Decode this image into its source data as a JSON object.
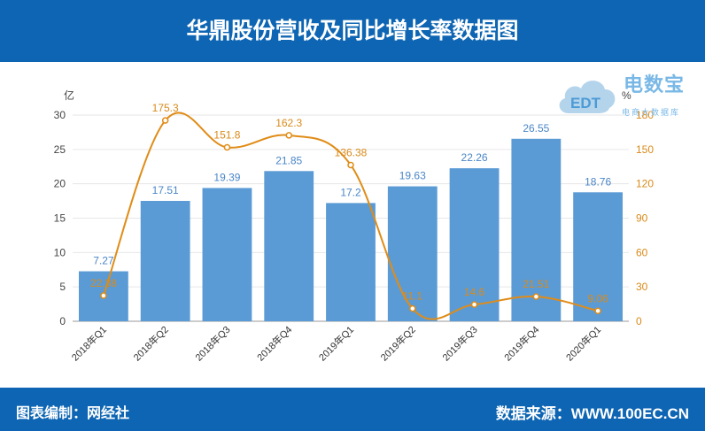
{
  "header": {
    "title": "华鼎股份营收及同比增长率数据图"
  },
  "footer": {
    "left": "图表编制：网经社",
    "right": "数据来源：WWW.100EC.CN"
  },
  "logo": {
    "main": "电数宝",
    "sub": "电商大数据库",
    "badge": "EDT"
  },
  "colors": {
    "header_bg": "#0d65b3",
    "bar": "#5b9bd5",
    "line": "#e08c17",
    "bar_label": "#4a86c8",
    "line_label": "#d98a1a"
  },
  "chart_data": {
    "type": "bar",
    "title": "华鼎股份营收及同比增长率数据图",
    "categories": [
      "2018年Q1",
      "2018年Q2",
      "2018年Q3",
      "2018年Q4",
      "2019年Q1",
      "2019年Q2",
      "2019年Q3",
      "2019年Q4",
      "2020年Q1"
    ],
    "series": [
      {
        "type": "bar",
        "axis": "left",
        "values": [
          7.27,
          17.51,
          19.39,
          21.85,
          17.2,
          19.63,
          22.26,
          26.55,
          18.76
        ]
      },
      {
        "type": "line",
        "axis": "right",
        "values": [
          22.38,
          175.3,
          151.8,
          162.3,
          136.38,
          11.1,
          14.6,
          21.51,
          9.06
        ]
      }
    ],
    "y_left": {
      "label": "亿",
      "min": 0,
      "max": 30,
      "ticks": [
        0,
        5,
        10,
        15,
        20,
        25,
        30
      ]
    },
    "y_right": {
      "label": "%",
      "min": 0,
      "max": 180,
      "ticks": [
        0,
        30,
        60,
        90,
        120,
        150,
        180
      ]
    },
    "grid": true
  }
}
